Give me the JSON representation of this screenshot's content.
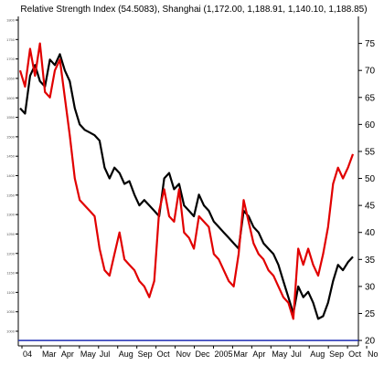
{
  "chart_data": {
    "type": "line",
    "title": "Relative Strength Index (54.5083), Shanghai (1,172.00, 1,188.91, 1,140.10, 1,188.85)",
    "xlabel": "",
    "ylabel": "",
    "ylim": [
      19,
      80
    ],
    "right_ticks": [
      "75",
      "70",
      "65",
      "60",
      "55",
      "50",
      "45",
      "40",
      "35",
      "30",
      "25",
      "20"
    ],
    "left_ticks": [
      "1800",
      "1750",
      "1700",
      "1650",
      "1600",
      "1550",
      "1500",
      "1450",
      "1400",
      "1350",
      "1300",
      "1250",
      "1200",
      "1150",
      "1100",
      "1050",
      "1000"
    ],
    "x_labels": [
      "04",
      "Mar",
      "Apr",
      "May",
      "Jul",
      "Aug",
      "Sep",
      "Oct",
      "Nov",
      "Dec",
      "2005",
      "Mar",
      "Apr",
      "May",
      "Jul",
      "Aug",
      "Sep",
      "Oct",
      "No"
    ],
    "reference_line": {
      "value": 20,
      "color": "#1e2db4"
    },
    "series": [
      {
        "color": "#000000",
        "points": [
          [
            0,
            63
          ],
          [
            1,
            62
          ],
          [
            2,
            69
          ],
          [
            3,
            71
          ],
          [
            4,
            68
          ],
          [
            5,
            67
          ],
          [
            6,
            72
          ],
          [
            7,
            71
          ],
          [
            8,
            73
          ],
          [
            9,
            70
          ],
          [
            10,
            68
          ],
          [
            11,
            63
          ],
          [
            12,
            60
          ],
          [
            13,
            59
          ],
          [
            14,
            58.5
          ],
          [
            15,
            58
          ],
          [
            16,
            57
          ],
          [
            17,
            52
          ],
          [
            18,
            50
          ],
          [
            19,
            52
          ],
          [
            20,
            51
          ],
          [
            21,
            49
          ],
          [
            22,
            49.5
          ],
          [
            23,
            47
          ],
          [
            24,
            45
          ],
          [
            25,
            46
          ],
          [
            26,
            45
          ],
          [
            27,
            44
          ],
          [
            28,
            43
          ],
          [
            29,
            50
          ],
          [
            30,
            51
          ],
          [
            31,
            48
          ],
          [
            32,
            49
          ],
          [
            33,
            45
          ],
          [
            34,
            44
          ],
          [
            35,
            43
          ],
          [
            36,
            47
          ],
          [
            37,
            45
          ],
          [
            38,
            44
          ],
          [
            39,
            42
          ],
          [
            40,
            41
          ],
          [
            41,
            40
          ],
          [
            42,
            39
          ],
          [
            43,
            38
          ],
          [
            44,
            37
          ],
          [
            45,
            44
          ],
          [
            46,
            43
          ],
          [
            47,
            41
          ],
          [
            48,
            40
          ],
          [
            49,
            38
          ],
          [
            50,
            37
          ],
          [
            51,
            36
          ],
          [
            52,
            34
          ],
          [
            53,
            31
          ],
          [
            54,
            28
          ],
          [
            55,
            25
          ],
          [
            56,
            30
          ],
          [
            57,
            28
          ],
          [
            58,
            29
          ],
          [
            59,
            27
          ],
          [
            60,
            24
          ],
          [
            61,
            24.5
          ],
          [
            62,
            27
          ],
          [
            63,
            31
          ],
          [
            64,
            34
          ],
          [
            65,
            33
          ],
          [
            66,
            34.5
          ],
          [
            67,
            35.5
          ]
        ]
      },
      {
        "color": "#e10000",
        "points": [
          [
            0,
            70
          ],
          [
            1,
            67
          ],
          [
            2,
            74
          ],
          [
            3,
            69
          ],
          [
            4,
            75
          ],
          [
            5,
            66
          ],
          [
            6,
            65
          ],
          [
            7,
            70
          ],
          [
            8,
            72
          ],
          [
            9,
            65
          ],
          [
            10,
            58
          ],
          [
            11,
            50
          ],
          [
            12,
            46
          ],
          [
            13,
            45
          ],
          [
            14,
            44
          ],
          [
            15,
            43
          ],
          [
            16,
            37
          ],
          [
            17,
            33
          ],
          [
            18,
            32
          ],
          [
            19,
            36
          ],
          [
            20,
            40
          ],
          [
            21,
            35
          ],
          [
            22,
            34
          ],
          [
            23,
            33
          ],
          [
            24,
            31
          ],
          [
            25,
            30
          ],
          [
            26,
            28
          ],
          [
            27,
            31
          ],
          [
            28,
            44
          ],
          [
            29,
            48
          ],
          [
            30,
            43
          ],
          [
            31,
            42
          ],
          [
            32,
            48
          ],
          [
            33,
            40
          ],
          [
            34,
            39
          ],
          [
            35,
            37
          ],
          [
            36,
            43
          ],
          [
            37,
            42
          ],
          [
            38,
            41
          ],
          [
            39,
            36
          ],
          [
            40,
            35
          ],
          [
            41,
            33
          ],
          [
            42,
            31
          ],
          [
            43,
            30
          ],
          [
            44,
            36
          ],
          [
            45,
            46
          ],
          [
            46,
            42
          ],
          [
            47,
            38
          ],
          [
            48,
            36
          ],
          [
            49,
            35
          ],
          [
            50,
            33
          ],
          [
            51,
            32
          ],
          [
            52,
            30
          ],
          [
            53,
            28
          ],
          [
            54,
            27
          ],
          [
            55,
            24
          ],
          [
            56,
            37
          ],
          [
            57,
            34
          ],
          [
            58,
            37
          ],
          [
            59,
            34
          ],
          [
            60,
            32
          ],
          [
            61,
            36
          ],
          [
            62,
            41
          ],
          [
            63,
            49
          ],
          [
            64,
            52
          ],
          [
            65,
            50
          ],
          [
            66,
            52
          ],
          [
            67,
            54.5
          ]
        ]
      }
    ]
  }
}
